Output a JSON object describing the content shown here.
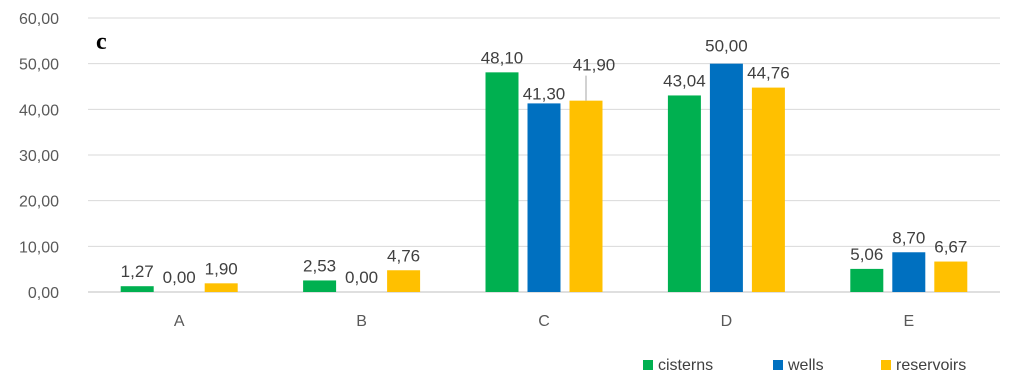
{
  "chart_data": {
    "type": "bar",
    "panel_label": "c",
    "categories": [
      "A",
      "B",
      "C",
      "D",
      "E"
    ],
    "series": [
      {
        "name": "cisterns",
        "color": "#00b050",
        "values": [
          1.27,
          2.53,
          48.1,
          43.04,
          5.06
        ],
        "labels": [
          "1,27",
          "2,53",
          "48,10",
          "43,04",
          "5,06"
        ]
      },
      {
        "name": "wells",
        "color": "#0070c0",
        "values": [
          0.0,
          0.0,
          41.3,
          50.0,
          8.7
        ],
        "labels": [
          "0,00",
          "0,00",
          "41,30",
          "50,00",
          "8,70"
        ]
      },
      {
        "name": "reservoirs",
        "color": "#ffc000",
        "values": [
          1.9,
          4.76,
          41.9,
          44.76,
          6.67
        ],
        "labels": [
          "1,90",
          "4,76",
          "41,90",
          "44,76",
          "6,67"
        ]
      }
    ],
    "yticks": [
      "0,00",
      "10,00",
      "20,00",
      "30,00",
      "40,00",
      "50,00",
      "60,00"
    ],
    "ylim": [
      0,
      60
    ],
    "grid": true,
    "legend_position": "bottom-right",
    "xlabel": "",
    "ylabel": ""
  }
}
